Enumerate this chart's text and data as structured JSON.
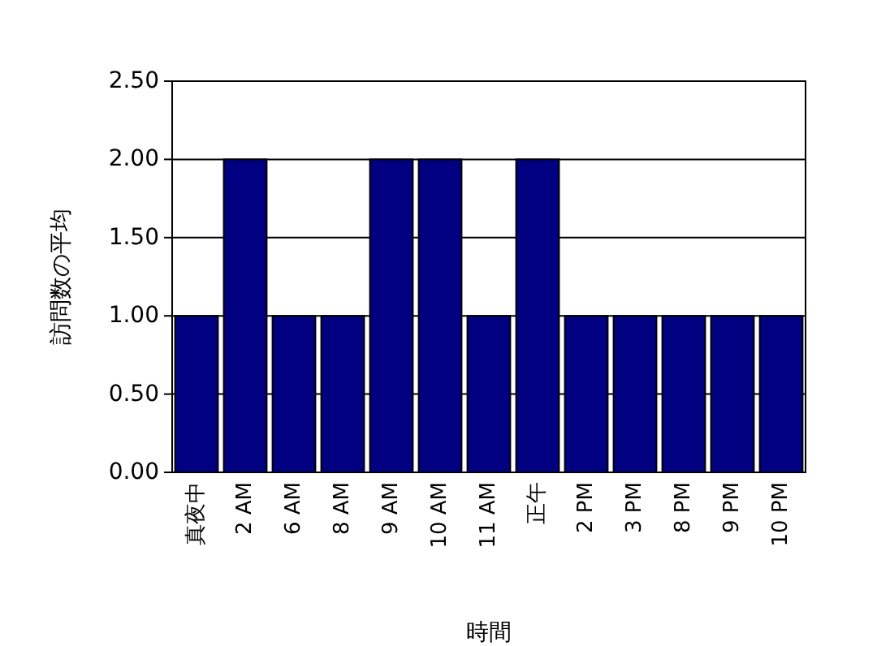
{
  "chart_data": {
    "type": "bar",
    "xlabel": "時間",
    "ylabel": "訪問数の平均",
    "categories": [
      "真夜中",
      "2 AM",
      "6 AM",
      "8 AM",
      "9 AM",
      "10 AM",
      "11 AM",
      "正午",
      "2 PM",
      "3 PM",
      "8 PM",
      "9 PM",
      "10 PM"
    ],
    "values": [
      1,
      2,
      1,
      1,
      2,
      2,
      1,
      2,
      1,
      1,
      1,
      1,
      1
    ],
    "color": "#000080",
    "ylim": [
      0,
      2.5
    ],
    "yticks": [
      {
        "value": 0,
        "label": "0.00"
      },
      {
        "value": 0.5,
        "label": "0.50"
      },
      {
        "value": 1,
        "label": "1.00"
      },
      {
        "value": 1.5,
        "label": "1.50"
      },
      {
        "value": 2,
        "label": "2.00"
      },
      {
        "value": 2.5,
        "label": "2.50"
      }
    ],
    "grid": true
  }
}
